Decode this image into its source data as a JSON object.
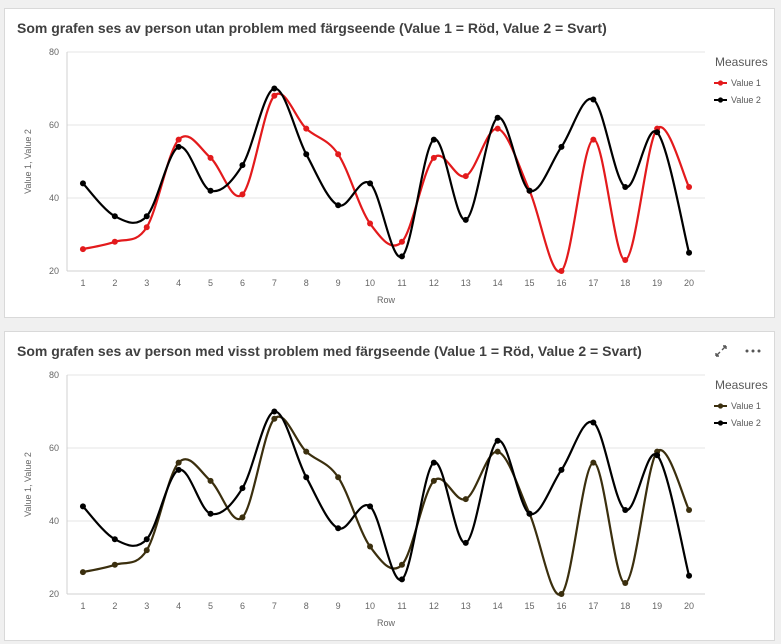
{
  "chart_data": [
    {
      "type": "line",
      "title": "Som grafen ses av person utan problem med färgseende (Value 1 = Röd, Value 2 = Svart)",
      "xlabel": "Row",
      "ylabel": "Value 1, Value 2",
      "ylim": [
        20,
        80
      ],
      "yticks": [
        "20",
        "40",
        "60",
        "80"
      ],
      "categories": [
        "1",
        "2",
        "3",
        "4",
        "5",
        "6",
        "7",
        "8",
        "9",
        "10",
        "11",
        "12",
        "13",
        "14",
        "15",
        "16",
        "17",
        "18",
        "19",
        "20"
      ],
      "legend_title": "Measures",
      "legend_position": "right",
      "grid": true,
      "series": [
        {
          "name": "Value 1",
          "color": "#e31a1c",
          "values": [
            26,
            28,
            32,
            56,
            51,
            41,
            68,
            59,
            52,
            33,
            28,
            51,
            46,
            59,
            42,
            20,
            56,
            23,
            59,
            43
          ]
        },
        {
          "name": "Value 2",
          "color": "#000000",
          "values": [
            44,
            35,
            35,
            54,
            42,
            49,
            70,
            52,
            38,
            44,
            24,
            56,
            34,
            62,
            42,
            54,
            67,
            43,
            58,
            25
          ]
        }
      ]
    },
    {
      "type": "line",
      "title": "Som grafen ses av person med visst problem med färgseende (Value 1 = Röd, Value 2 = Svart)",
      "xlabel": "Row",
      "ylabel": "Value 1, Value 2",
      "ylim": [
        20,
        80
      ],
      "yticks": [
        "20",
        "40",
        "60",
        "80"
      ],
      "categories": [
        "1",
        "2",
        "3",
        "4",
        "5",
        "6",
        "7",
        "8",
        "9",
        "10",
        "11",
        "12",
        "13",
        "14",
        "15",
        "16",
        "17",
        "18",
        "19",
        "20"
      ],
      "legend_title": "Measures",
      "legend_position": "right",
      "grid": true,
      "series": [
        {
          "name": "Value 1",
          "color": "#3b2f0e",
          "values": [
            26,
            28,
            32,
            56,
            51,
            41,
            68,
            59,
            52,
            33,
            28,
            51,
            46,
            59,
            42,
            20,
            56,
            23,
            59,
            43
          ]
        },
        {
          "name": "Value 2",
          "color": "#000000",
          "values": [
            44,
            35,
            35,
            54,
            42,
            49,
            70,
            52,
            38,
            44,
            24,
            56,
            34,
            62,
            42,
            54,
            67,
            43,
            58,
            25
          ]
        }
      ]
    }
  ],
  "panel2_actions": {
    "expand_icon": "expand-icon",
    "more_icon": "more-icon"
  }
}
